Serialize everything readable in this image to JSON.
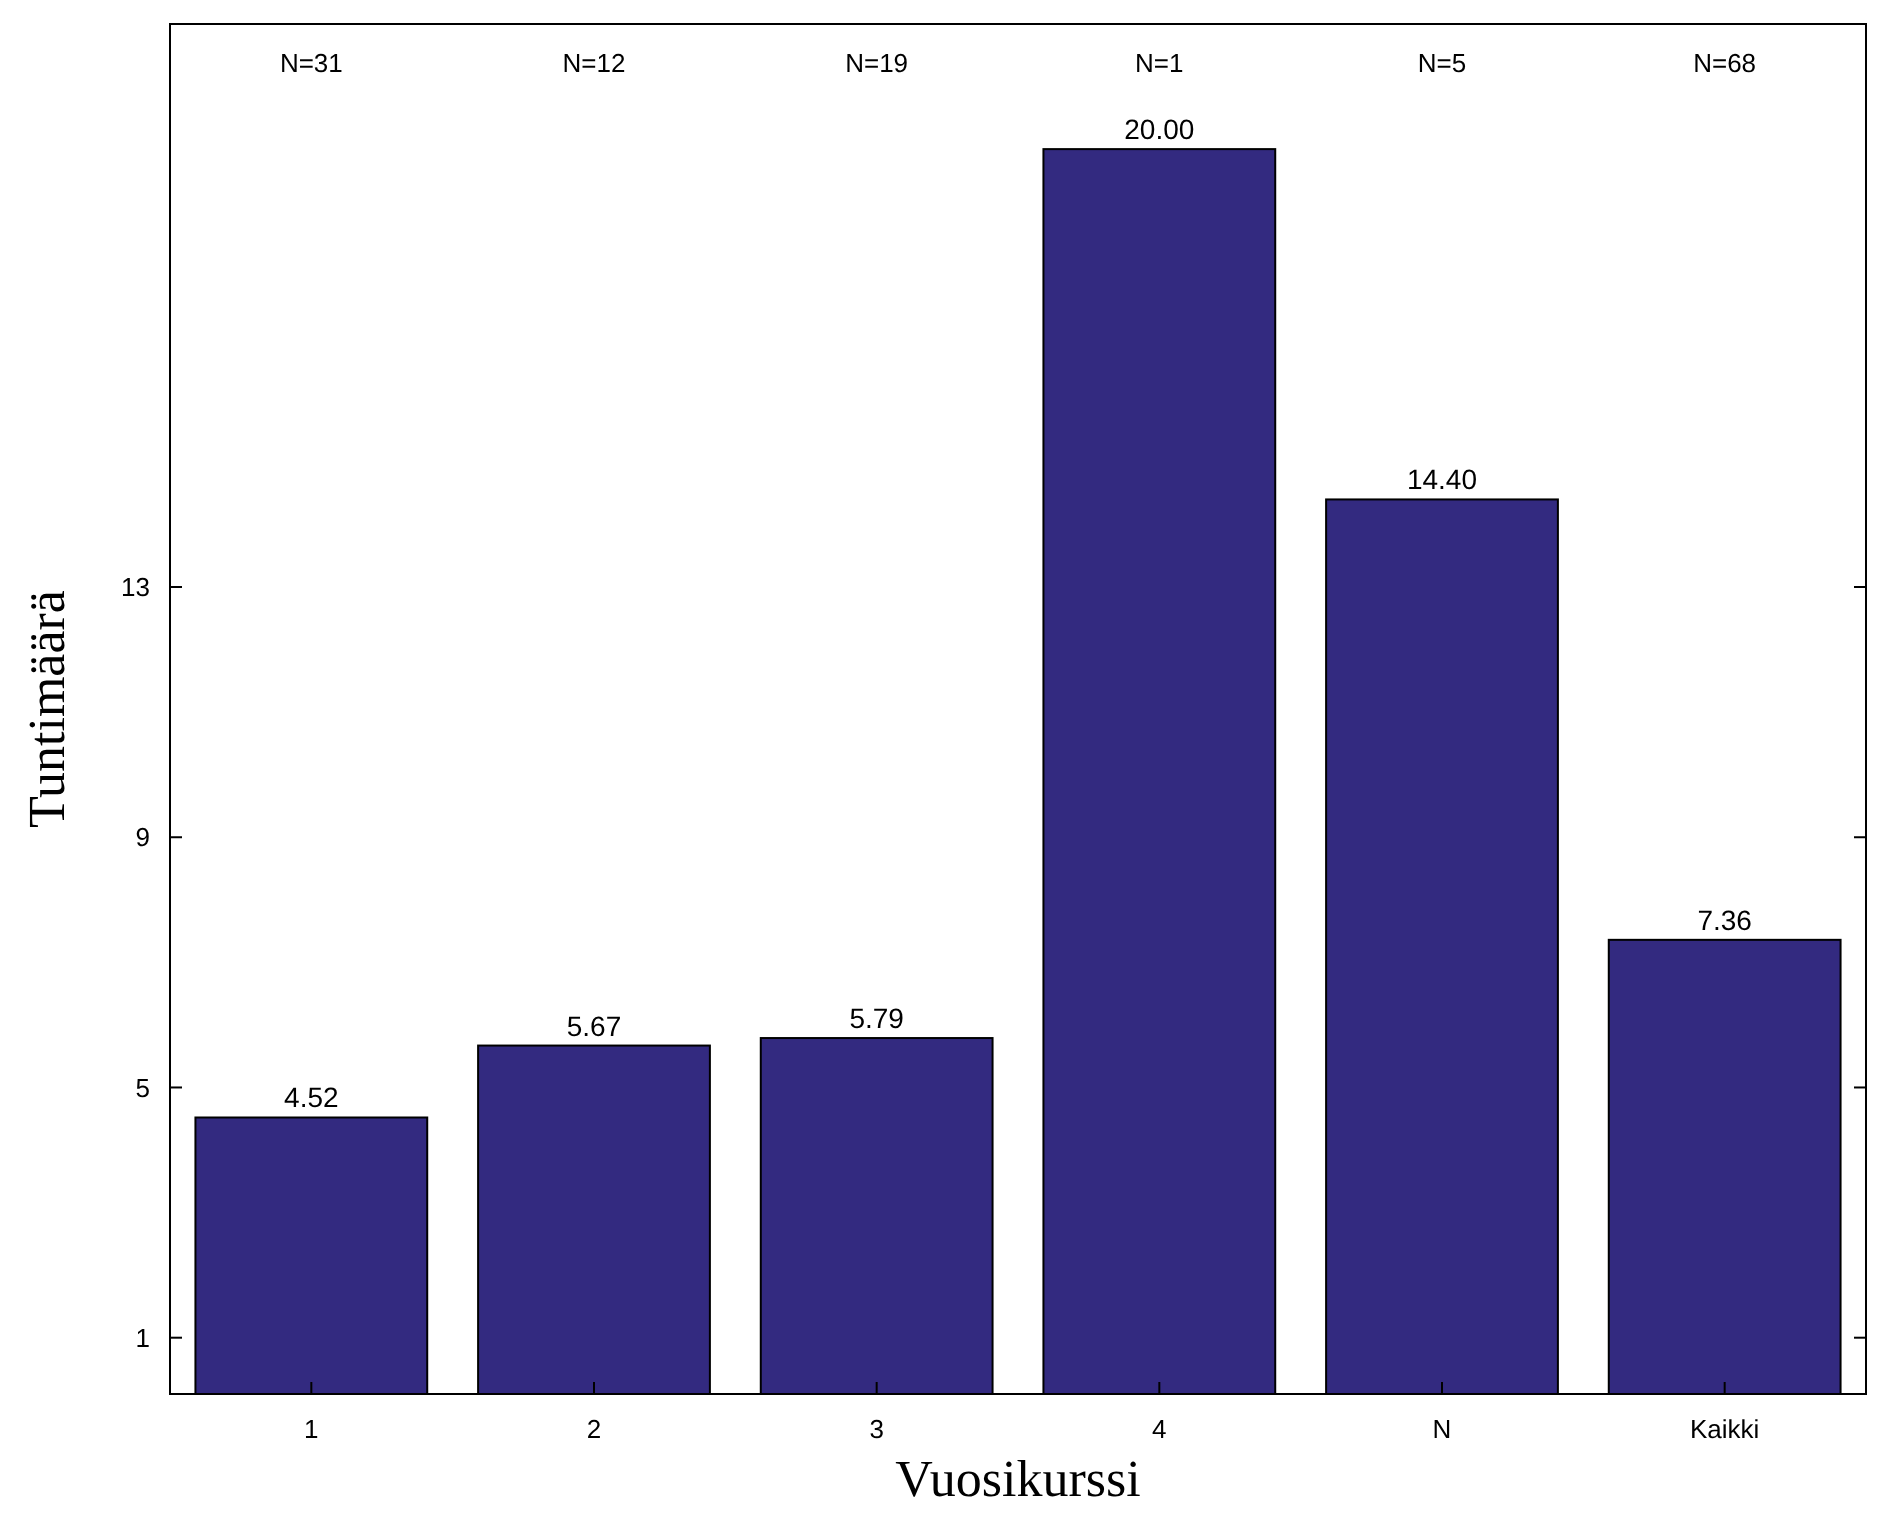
{
  "chart_data": {
    "type": "bar",
    "xlabel": "Vuosikurssi",
    "ylabel": "Tuntimäärä",
    "categories": [
      "1",
      "2",
      "3",
      "4",
      "N",
      "Kaikki"
    ],
    "values": [
      4.52,
      5.67,
      5.79,
      20.0,
      14.4,
      7.36
    ],
    "value_labels": [
      "4.52",
      "5.67",
      "5.79",
      "20.00",
      "14.40",
      "7.36"
    ],
    "color": "#332a80",
    "ylim": [
      0.1,
      22
    ],
    "yticks": [
      1,
      5,
      9,
      13
    ],
    "grid": false,
    "annotations": [
      "N=31",
      "N=12",
      "N=19",
      "N=1",
      "N=5",
      "N=68"
    ]
  }
}
